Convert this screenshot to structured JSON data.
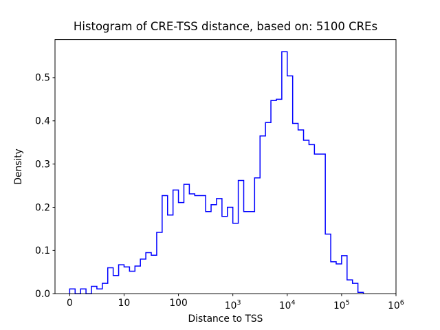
{
  "chart_data": {
    "type": "bar",
    "subtype": "histogram-step",
    "title": "Histogram of CRE-TSS distance, based on: 5100 CREs",
    "xlabel": "Distance to TSS",
    "ylabel": "Density",
    "legend": "none",
    "grid": "off",
    "line_color": "#0000ff",
    "background_color": "#ffffff",
    "x_axis": {
      "scale": "log10-distance (u = log10 of distance; leftmost tick labeled 0)",
      "lim_u": [
        -0.27,
        6.0
      ],
      "ticks": [
        {
          "u": 0,
          "label": "0"
        },
        {
          "u": 1,
          "label": "10"
        },
        {
          "u": 2,
          "label": "100"
        },
        {
          "u": 3,
          "label": "10^3"
        },
        {
          "u": 4,
          "label": "10^4"
        },
        {
          "u": 5,
          "label": "10^5"
        },
        {
          "u": 6,
          "label": "10^6"
        }
      ]
    },
    "y_axis": {
      "lim": [
        0,
        0.588
      ],
      "ticks": [
        "0.0",
        "0.1",
        "0.2",
        "0.3",
        "0.4",
        "0.5"
      ]
    },
    "bins": {
      "start_u": 0.0,
      "width_u": 0.1,
      "densities": [
        0.011,
        0.0,
        0.011,
        0.0,
        0.017,
        0.011,
        0.024,
        0.06,
        0.042,
        0.067,
        0.062,
        0.052,
        0.064,
        0.08,
        0.095,
        0.089,
        0.142,
        0.227,
        0.182,
        0.24,
        0.211,
        0.253,
        0.231,
        0.227,
        0.227,
        0.19,
        0.206,
        0.22,
        0.179,
        0.2,
        0.163,
        0.262,
        0.19,
        0.19,
        0.268,
        0.365,
        0.396,
        0.447,
        0.45,
        0.56,
        0.504,
        0.394,
        0.379,
        0.355,
        0.345,
        0.323,
        0.323,
        0.138,
        0.074,
        0.069,
        0.088,
        0.032,
        0.024,
        0.003
      ]
    }
  }
}
